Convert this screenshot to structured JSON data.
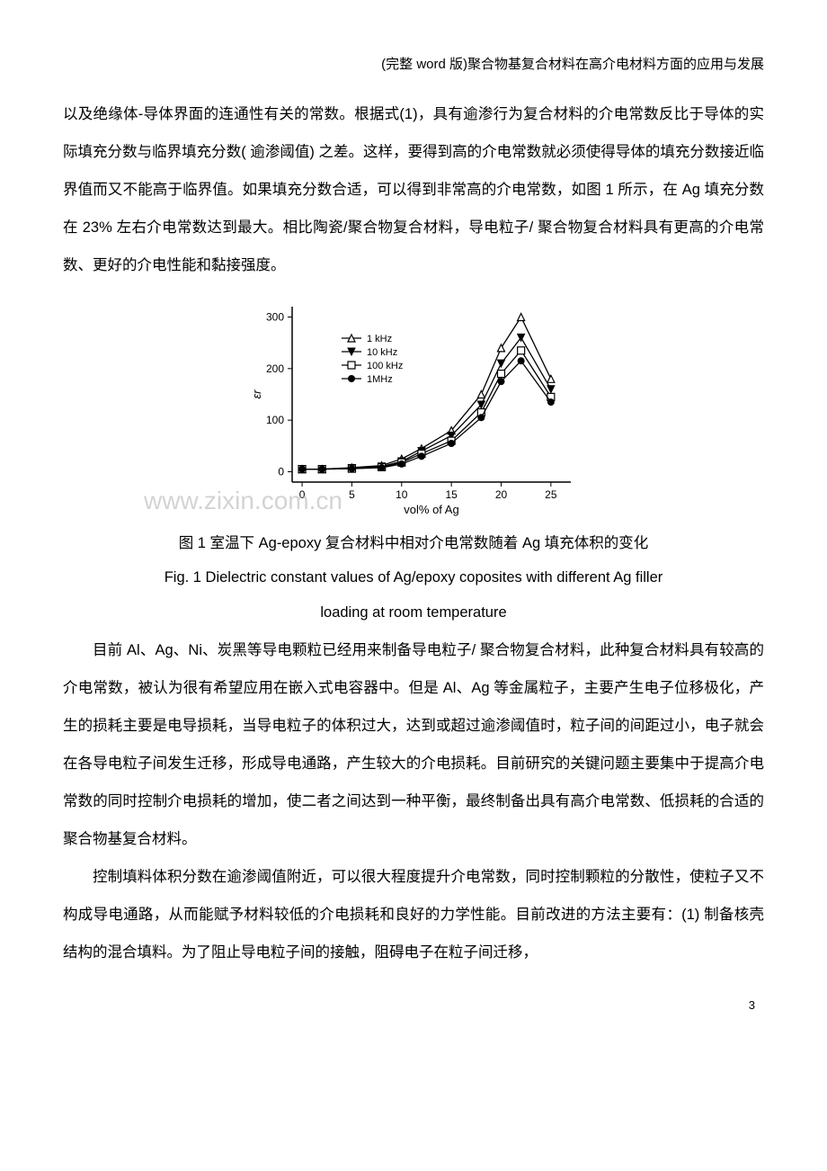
{
  "header": "(完整 word 版)聚合物基复合材料在高介电材料方面的应用与发展",
  "para1": "以及绝缘体-导体界面的连通性有关的常数。根据式(1)，具有逾渗行为复合材料的介电常数反比于导体的实际填充分数与临界填充分数( 逾渗阈值) 之差。这样，要得到高的介电常数就必须使得导体的填充分数接近临界值而又不能高于临界值。如果填充分数合适，可以得到非常高的介电常数，如图 1 所示，在 Ag 填充分数在 23% 左右介电常数达到最大。相比陶瓷/聚合物复合材料，导电粒子/ 聚合物复合材料具有更高的介电常数、更好的介电性能和黏接强度。",
  "fig_caption_cn": "图 1 室温下 Ag-epoxy 复合材料中相对介电常数随着 Ag 填充体积的变化",
  "fig_caption_en_l1": "Fig. 1 Dielectric constant values of Ag/epoxy coposites with different Ag filler",
  "fig_caption_en_l2": "loading at room temperature",
  "para2": "目前 Al、Ag、Ni、炭黑等导电颗粒已经用来制备导电粒子/ 聚合物复合材料，此种复合材料具有较高的介电常数，被认为很有希望应用在嵌入式电容器中。但是 Al、Ag 等金属粒子，主要产生电子位移极化，产生的损耗主要是电导损耗，当导电粒子的体积过大，达到或超过逾渗阈值时，粒子间的间距过小，电子就会在各导电粒子间发生迁移，形成导电通路，产生较大的介电损耗。目前研究的关键问题主要集中于提高介电常数的同时控制介电损耗的增加，使二者之间达到一种平衡，最终制备出具有高介电常数、低损耗的合适的聚合物基复合材料。",
  "para3": "控制填料体积分数在逾渗阈值附近，可以很大程度提升介电常数，同时控制颗粒的分散性，使粒子又不构成导电通路，从而能赋予材料较低的介电损耗和良好的力学性能。目前改进的方法主要有：(1) 制备核壳结构的混合填料。为了阻止导电粒子间的接触，阻碍电子在粒子间迁移，",
  "watermark": "www.zixin.com.cn",
  "page_number": "3",
  "chart": {
    "type": "line",
    "xlabel": "vol% of Ag",
    "ylabel": "εr",
    "xlim": [
      -1,
      27
    ],
    "ylim": [
      -20,
      320
    ],
    "xticks": [
      0,
      5,
      10,
      15,
      20,
      25
    ],
    "yticks": [
      0,
      100,
      200,
      300
    ],
    "background": "#ffffff",
    "axis_color": "#000000",
    "legend_pos": "inside-upper-left",
    "series": [
      {
        "label": "1 kHz",
        "marker": "triangle-open",
        "color": "#000000",
        "x": [
          0,
          2,
          5,
          8,
          10,
          12,
          15,
          18,
          20,
          22,
          25
        ],
        "y": [
          5,
          5,
          8,
          12,
          25,
          45,
          80,
          150,
          240,
          300,
          180
        ]
      },
      {
        "label": "10 kHz",
        "marker": "triangle-down-filled",
        "color": "#000000",
        "x": [
          0,
          2,
          5,
          8,
          10,
          12,
          15,
          18,
          20,
          22,
          25
        ],
        "y": [
          5,
          5,
          7,
          10,
          20,
          40,
          70,
          130,
          210,
          260,
          160
        ]
      },
      {
        "label": "100 kHz",
        "marker": "square-open",
        "color": "#000000",
        "x": [
          0,
          2,
          5,
          8,
          10,
          12,
          15,
          18,
          20,
          22,
          25
        ],
        "y": [
          5,
          5,
          6,
          9,
          18,
          35,
          60,
          115,
          190,
          235,
          145
        ]
      },
      {
        "label": "1MHz",
        "marker": "circle-filled",
        "color": "#000000",
        "x": [
          0,
          2,
          5,
          8,
          10,
          12,
          15,
          18,
          20,
          22,
          25
        ],
        "y": [
          5,
          5,
          6,
          8,
          15,
          30,
          55,
          105,
          175,
          215,
          135
        ]
      }
    ]
  }
}
